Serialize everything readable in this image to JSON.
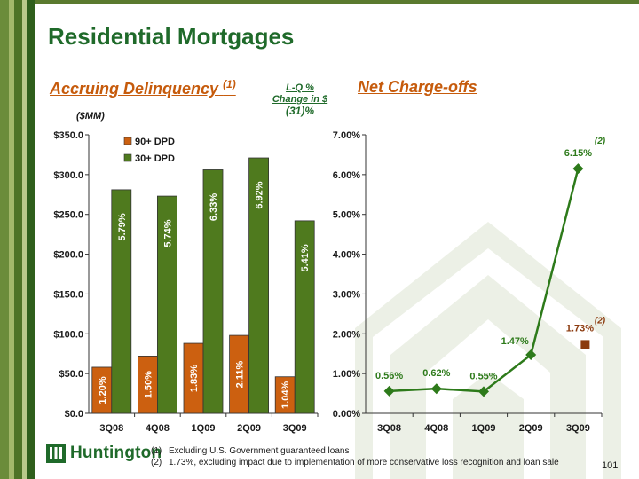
{
  "slide": {
    "title": "Residential Mortgages",
    "left_subtitle": "Accruing Delinquency",
    "left_subtitle_note": "(1)",
    "right_subtitle": "Net Charge-offs",
    "lq_line1": "L-Q %",
    "lq_line2": "Change in $",
    "lq_value": "(31)%",
    "units": "($MM)",
    "footnote1_num": "(1)",
    "footnote1": "Excluding U.S. Government guaranteed loans",
    "footnote2_num": "(2)",
    "footnote2": "1.73%, excluding impact due to implementation of more conservative loss recognition and loan sale",
    "logo_text": "Huntington",
    "page_number": "101"
  },
  "colors": {
    "brand_green": "#1f6a2a",
    "orange": "#cc6010",
    "bar_green": "#4f7a1e",
    "line_green": "#2d7a1a",
    "brown_marker": "#8b3a0e"
  },
  "chart_data": [
    {
      "type": "bar",
      "categories": [
        "3Q08",
        "4Q08",
        "1Q09",
        "2Q09",
        "3Q09"
      ],
      "series": [
        {
          "name": "90+ DPD",
          "values": [
            58,
            72,
            88,
            98,
            46
          ],
          "labels": [
            "1.20%",
            "1.50%",
            "1.83%",
            "2.11%",
            "1.04%"
          ]
        },
        {
          "name": "30+ DPD",
          "values": [
            281,
            273,
            306,
            321,
            242
          ],
          "labels": [
            "5.79%",
            "5.74%",
            "6.33%",
            "6.92%",
            "5.41%"
          ]
        }
      ],
      "ylim": [
        0,
        350
      ],
      "yticks": [
        "$0.0",
        "$50.0",
        "$100.0",
        "$150.0",
        "$200.0",
        "$250.0",
        "$300.0",
        "$350.0"
      ],
      "legend_position": "top-left",
      "grid": false
    },
    {
      "type": "line",
      "categories": [
        "3Q08",
        "4Q08",
        "1Q09",
        "2Q09",
        "3Q09"
      ],
      "series": [
        {
          "values": [
            0.56,
            0.62,
            0.55,
            1.47,
            6.15
          ],
          "labels": [
            "0.56%",
            "0.62%",
            "0.55%",
            "1.47%",
            "6.15%"
          ]
        }
      ],
      "extra_point": {
        "category": "3Q09",
        "value": 1.73,
        "label": "1.73%"
      },
      "annotations": [
        "(2)",
        "(2)"
      ],
      "ylim": [
        0,
        7
      ],
      "yticks": [
        "0.00%",
        "1.00%",
        "2.00%",
        "3.00%",
        "4.00%",
        "5.00%",
        "6.00%",
        "7.00%"
      ],
      "grid": false
    }
  ]
}
